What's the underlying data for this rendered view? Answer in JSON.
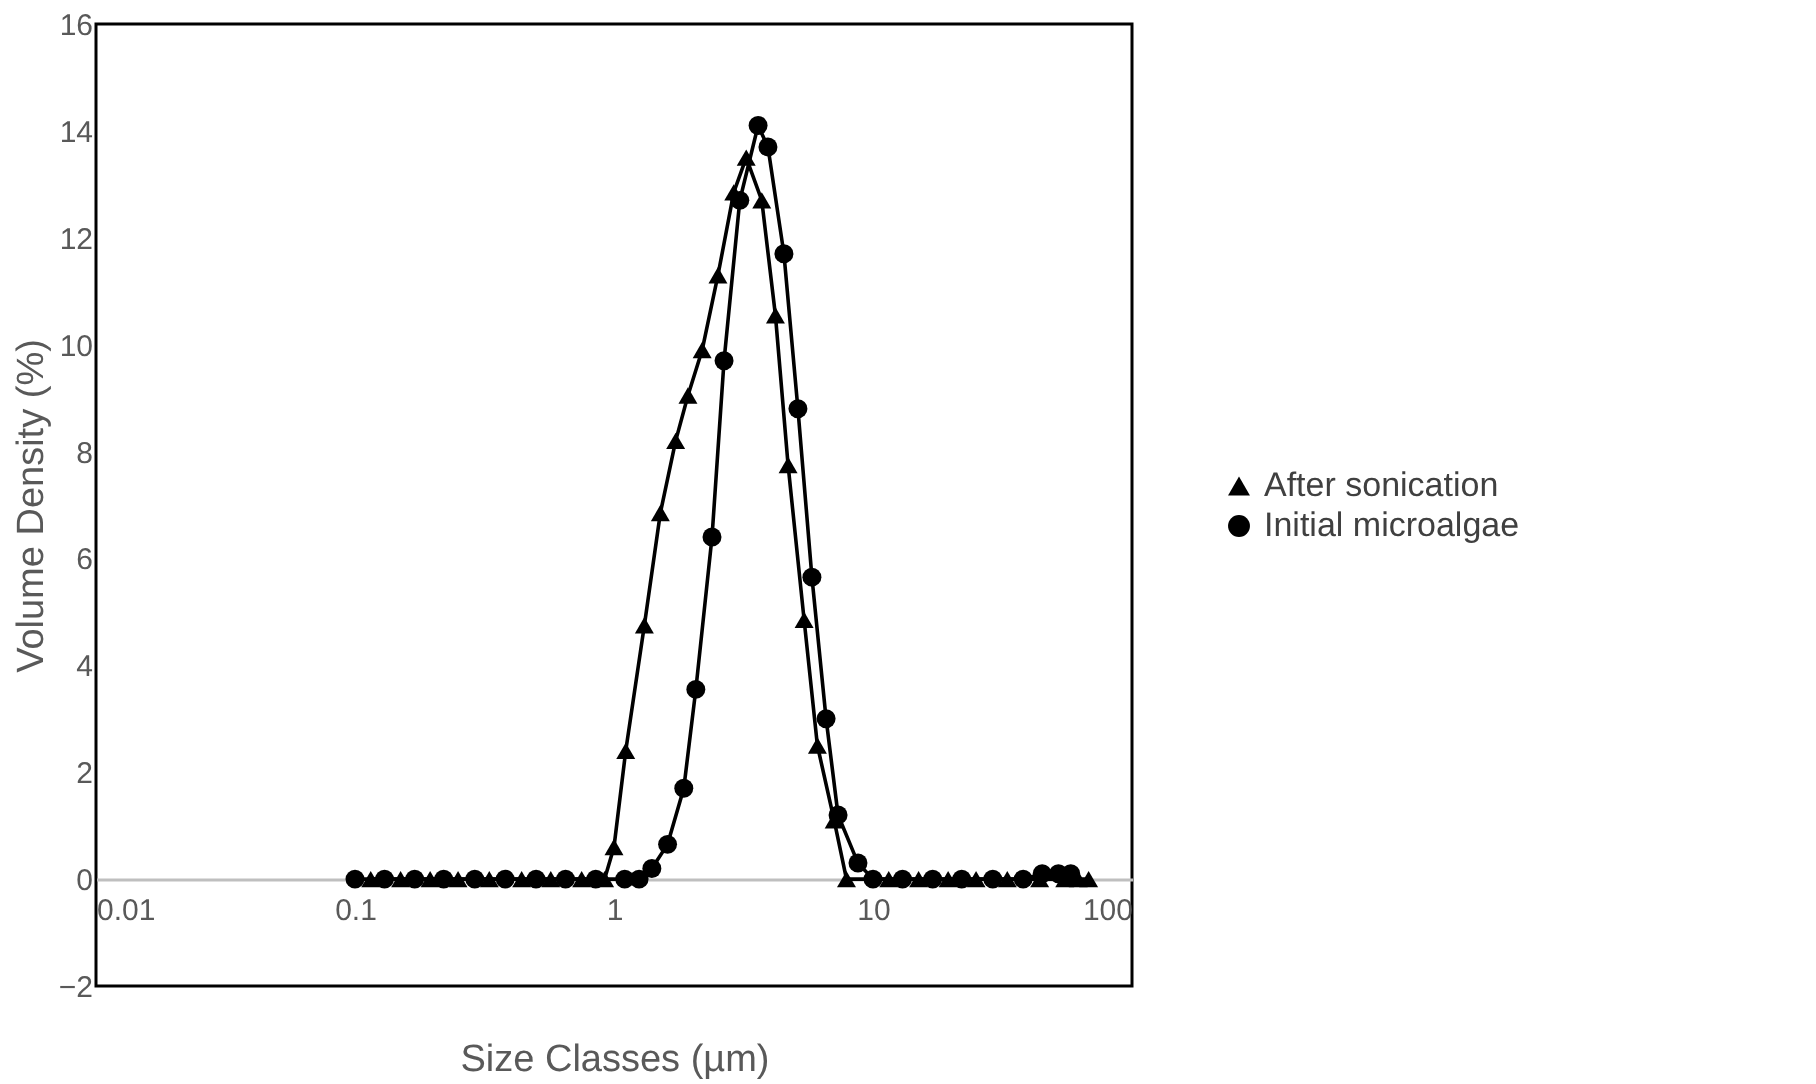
{
  "chart_data": {
    "type": "line",
    "xlabel": "Size Classes (µm)",
    "ylabel": "Volume Density (%)",
    "log": "x",
    "xlim": [
      0.01,
      100
    ],
    "xticks": [
      0.01,
      0.1,
      1,
      10,
      100
    ],
    "ylim": [
      -2,
      16
    ],
    "yticks": [
      -2,
      0,
      2,
      4,
      6,
      8,
      10,
      12,
      14,
      16
    ],
    "grid": false,
    "legend": "right",
    "line_style": "solid",
    "series": [
      {
        "name": "After sonication",
        "color": "#000000",
        "marker": "triangle",
        "x": [
          0.115,
          0.15,
          0.195,
          0.25,
          0.33,
          0.44,
          0.57,
          0.75,
          0.92,
          1.0,
          1.11,
          1.31,
          1.51,
          1.73,
          1.93,
          2.19,
          2.52,
          2.9,
          3.24,
          3.72,
          4.2,
          4.7,
          5.42,
          6.1,
          7.08,
          7.9,
          11.5,
          15,
          19.5,
          25,
          33,
          44,
          55,
          62,
          68
        ],
        "values": [
          0,
          0,
          0,
          0,
          0,
          0,
          0,
          0,
          0,
          0.6,
          2.4,
          4.75,
          6.85,
          8.2,
          9.05,
          9.9,
          11.3,
          12.85,
          13.5,
          12.7,
          10.55,
          7.75,
          4.85,
          2.5,
          1.1,
          0,
          0,
          0,
          0,
          0,
          0,
          0,
          0,
          0,
          0
        ]
      },
      {
        "name": "Initial microalgae",
        "color": "#000000",
        "marker": "circle",
        "x": [
          0.1,
          0.13,
          0.17,
          0.22,
          0.29,
          0.38,
          0.5,
          0.65,
          0.85,
          1.1,
          1.25,
          1.4,
          1.61,
          1.86,
          2.07,
          2.39,
          2.66,
          3.06,
          3.6,
          3.93,
          4.53,
          5.13,
          5.81,
          6.59,
          7.33,
          8.75,
          10,
          13,
          17,
          22,
          29,
          38,
          45,
          52,
          58
        ],
        "values": [
          0,
          0,
          0,
          0,
          0,
          0,
          0,
          0,
          0,
          0,
          0,
          0.2,
          0.65,
          1.7,
          3.55,
          6.4,
          9.7,
          12.7,
          14.1,
          13.7,
          11.7,
          8.8,
          5.65,
          3.0,
          1.2,
          0.3,
          0,
          0,
          0,
          0,
          0,
          0,
          0.1,
          0.1,
          0.1
        ]
      }
    ]
  }
}
